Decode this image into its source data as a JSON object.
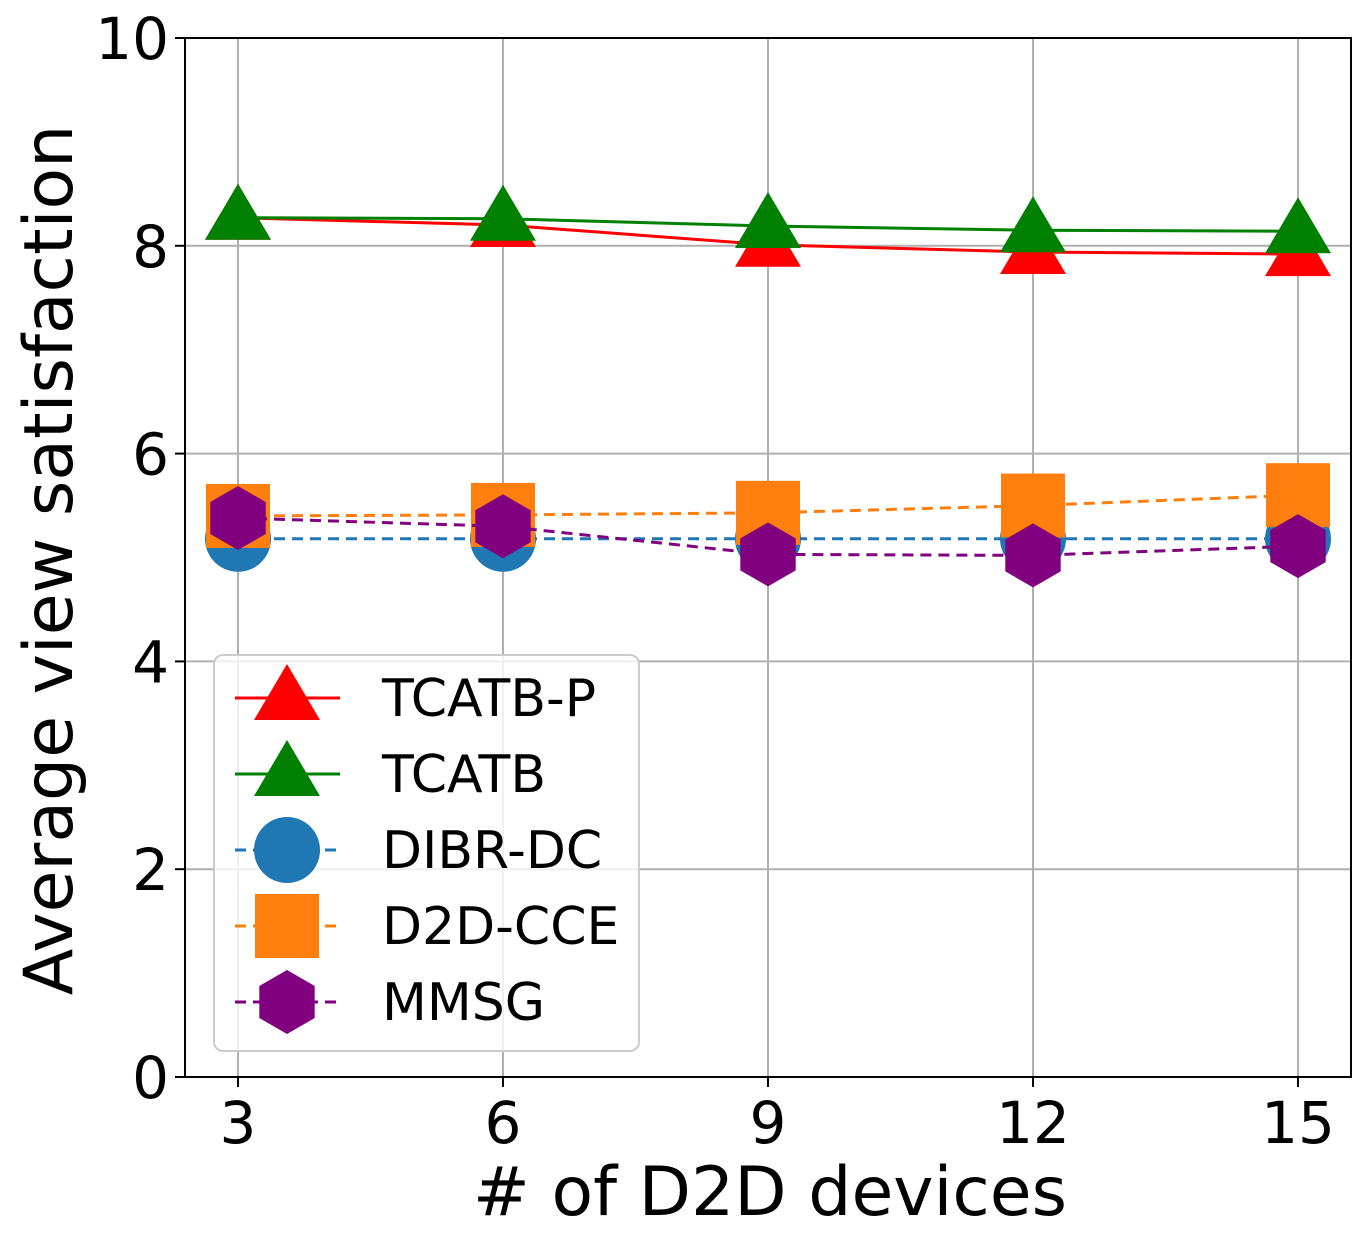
{
  "chart_data": {
    "type": "line",
    "title": "",
    "xlabel": "# of D2D devices",
    "ylabel": "Average view satisfaction",
    "x": [
      3,
      6,
      9,
      12,
      15
    ],
    "xlim": [
      2.4,
      15.6
    ],
    "ylim": [
      0,
      10
    ],
    "xticks": [
      "3",
      "6",
      "9",
      "12",
      "15"
    ],
    "yticks": [
      "0",
      "2",
      "4",
      "6",
      "8",
      "10"
    ],
    "grid": true,
    "legend_position": "lower-left",
    "series": [
      {
        "name": "TCATB-P",
        "values": [
          8.27,
          8.2,
          8.01,
          7.94,
          7.92
        ],
        "color": "#ff0000",
        "marker": "triangle",
        "line": "solid"
      },
      {
        "name": "TCATB",
        "values": [
          8.27,
          8.26,
          8.19,
          8.15,
          8.14
        ],
        "color": "#008000",
        "marker": "triangle",
        "line": "solid"
      },
      {
        "name": "DIBR-DC",
        "values": [
          5.18,
          5.18,
          5.18,
          5.18,
          5.18
        ],
        "color": "#1f77b4",
        "marker": "circle",
        "line": "dashed"
      },
      {
        "name": "D2D-CCE",
        "values": [
          5.4,
          5.41,
          5.43,
          5.5,
          5.6
        ],
        "color": "#ff7f0e",
        "marker": "square",
        "line": "dashed"
      },
      {
        "name": "MMSG",
        "values": [
          5.38,
          5.3,
          5.03,
          5.02,
          5.11
        ],
        "color": "#800080",
        "marker": "hexagon",
        "line": "dashed"
      }
    ]
  }
}
